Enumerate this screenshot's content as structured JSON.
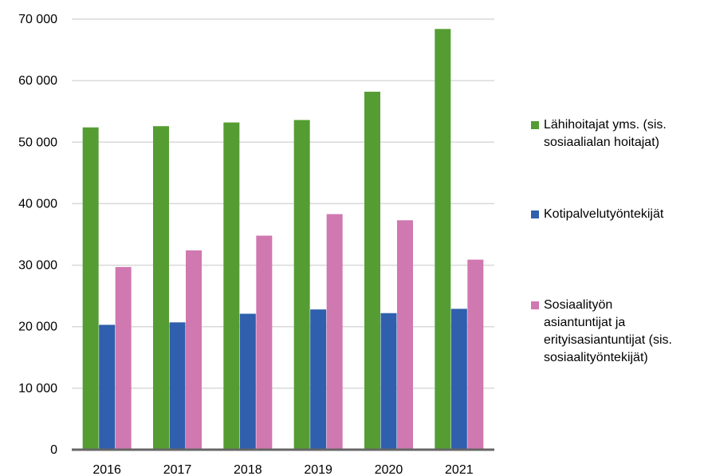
{
  "chart_data": {
    "type": "bar",
    "categories": [
      "2016",
      "2017",
      "2018",
      "2019",
      "2020",
      "2021"
    ],
    "series": [
      {
        "name": "Lähihoitajat yms. (sis.\nsosiaalialan hoitajat)",
        "color": "#559d32",
        "values": [
          52400,
          52600,
          53200,
          53600,
          58200,
          68400
        ]
      },
      {
        "name": "Kotipalvelutyöntekijät",
        "color": "#2f5fad",
        "values": [
          20300,
          20700,
          22100,
          22800,
          22200,
          22900
        ]
      },
      {
        "name": "Sosiaalityön\nasiantuntijat ja\nerityisasiantuntijat (sis.\nsosiaalityöntekijät)",
        "color": "#d078b0",
        "values": [
          29700,
          32400,
          34800,
          38300,
          37300,
          30900
        ]
      }
    ],
    "yticks": [
      "0",
      "10 000",
      "20 000",
      "30 000",
      "40 000",
      "50 000",
      "60 000",
      "70 000"
    ],
    "ylim": [
      0,
      70000
    ],
    "grid": true,
    "legend_position": "right"
  }
}
